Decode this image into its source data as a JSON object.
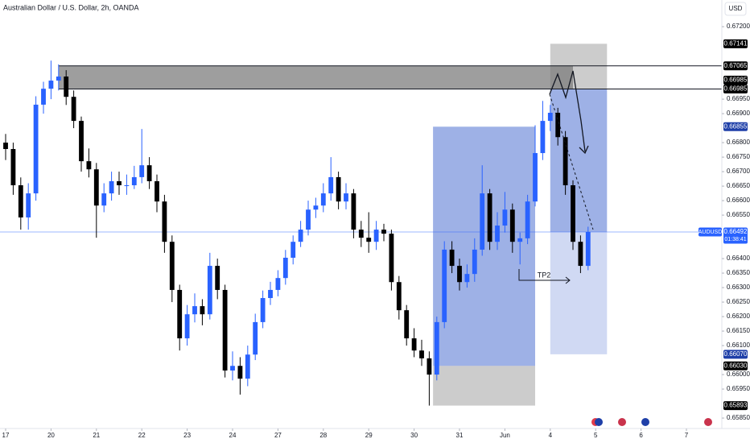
{
  "chart_data": {
    "type": "candlestick",
    "title": "Australian Dollar / U.S. Dollar, 2h, OANDA",
    "currency": "USD",
    "up_color": "#2962ff",
    "down_color": "#000000",
    "xlim": [
      -0.745,
      94.68
    ],
    "ylim": [
      0.65814,
      0.67292
    ],
    "xticks": [
      {
        "value": 0,
        "label": "17"
      },
      {
        "value": 6,
        "label": "20"
      },
      {
        "value": 12,
        "label": "21"
      },
      {
        "value": 18,
        "label": "22"
      },
      {
        "value": 24,
        "label": "23"
      },
      {
        "value": 30,
        "label": "24"
      },
      {
        "value": 36,
        "label": "27"
      },
      {
        "value": 42,
        "label": "28"
      },
      {
        "value": 48,
        "label": "29"
      },
      {
        "value": 54,
        "label": "30"
      },
      {
        "value": 60,
        "label": "31"
      },
      {
        "value": 66,
        "label": "Jun"
      },
      {
        "value": 72,
        "label": "4"
      },
      {
        "value": 78,
        "label": "5"
      },
      {
        "value": 84,
        "label": "6"
      },
      {
        "value": 90,
        "label": "7"
      }
    ],
    "yticks": [
      {
        "value": 0.672,
        "label": "0.67200"
      },
      {
        "value": 0.6695,
        "label": "0.66950"
      },
      {
        "value": 0.669,
        "label": "0.66900"
      },
      {
        "value": 0.668,
        "label": "0.66800"
      },
      {
        "value": 0.6675,
        "label": "0.66750"
      },
      {
        "value": 0.667,
        "label": "0.66700"
      },
      {
        "value": 0.6665,
        "label": "0.66650"
      },
      {
        "value": 0.666,
        "label": "0.66600"
      },
      {
        "value": 0.6655,
        "label": "0.66550"
      },
      {
        "value": 0.664,
        "label": "0.66400"
      },
      {
        "value": 0.6635,
        "label": "0.66350"
      },
      {
        "value": 0.663,
        "label": "0.66300"
      },
      {
        "value": 0.6625,
        "label": "0.66250"
      },
      {
        "value": 0.662,
        "label": "0.66200"
      },
      {
        "value": 0.6615,
        "label": "0.66150"
      },
      {
        "value": 0.661,
        "label": "0.66100"
      },
      {
        "value": 0.66,
        "label": "0.66000"
      },
      {
        "value": 0.6595,
        "label": "0.65950"
      },
      {
        "value": 0.6585,
        "label": "0.65850"
      }
    ],
    "ohlc": [
      [
        0.668,
        0.6683,
        0.6674,
        0.66778
      ],
      [
        0.66778,
        0.668,
        0.6662,
        0.66653
      ],
      [
        0.66653,
        0.6668,
        0.665,
        0.66542
      ],
      [
        0.66542,
        0.6666,
        0.665,
        0.66625
      ],
      [
        0.66625,
        0.6696,
        0.666,
        0.66931
      ],
      [
        0.66931,
        0.6701,
        0.669,
        0.66986
      ],
      [
        0.66986,
        0.67083,
        0.6695,
        0.67014
      ],
      [
        0.67014,
        0.6707,
        0.6698,
        0.67028
      ],
      [
        0.67028,
        0.6705,
        0.6693,
        0.66958
      ],
      [
        0.66958,
        0.6698,
        0.6685,
        0.66875
      ],
      [
        0.66875,
        0.6689,
        0.667,
        0.66736
      ],
      [
        0.66736,
        0.6678,
        0.6668,
        0.66708
      ],
      [
        0.66708,
        0.6673,
        0.66472,
        0.66583
      ],
      [
        0.66583,
        0.6666,
        0.6656,
        0.66625
      ],
      [
        0.66625,
        0.667,
        0.666,
        0.66667
      ],
      [
        0.66667,
        0.667,
        0.6662,
        0.66653
      ],
      [
        0.66653,
        0.6669,
        0.6662,
        0.66653
      ],
      [
        0.66653,
        0.6672,
        0.6664,
        0.66681
      ],
      [
        0.66681,
        0.66847,
        0.6666,
        0.66722
      ],
      [
        0.66722,
        0.6675,
        0.6664,
        0.66667
      ],
      [
        0.66667,
        0.6669,
        0.6656,
        0.66597
      ],
      [
        0.66597,
        0.6662,
        0.6642,
        0.66458
      ],
      [
        0.66458,
        0.6648,
        0.6625,
        0.66292
      ],
      [
        0.66292,
        0.6631,
        0.66083,
        0.66125
      ],
      [
        0.66125,
        0.6624,
        0.661,
        0.66208
      ],
      [
        0.66208,
        0.6628,
        0.6618,
        0.66236
      ],
      [
        0.66236,
        0.6626,
        0.6617,
        0.66208
      ],
      [
        0.66208,
        0.6642,
        0.6619,
        0.66375
      ],
      [
        0.66375,
        0.664,
        0.6626,
        0.66292
      ],
      [
        0.66292,
        0.6631,
        0.6599,
        0.66014
      ],
      [
        0.66014,
        0.6608,
        0.6598,
        0.6603
      ],
      [
        0.6603,
        0.6606,
        0.65931,
        0.65986
      ],
      [
        0.65986,
        0.661,
        0.6596,
        0.66069
      ],
      [
        0.66069,
        0.6621,
        0.6605,
        0.66181
      ],
      [
        0.66181,
        0.6629,
        0.6616,
        0.66264
      ],
      [
        0.66264,
        0.6632,
        0.6624,
        0.66292
      ],
      [
        0.66292,
        0.6636,
        0.6627,
        0.66333
      ],
      [
        0.66333,
        0.6643,
        0.6631,
        0.66403
      ],
      [
        0.66403,
        0.6648,
        0.6638,
        0.66458
      ],
      [
        0.66458,
        0.6653,
        0.6644,
        0.665
      ],
      [
        0.665,
        0.666,
        0.6648,
        0.66569
      ],
      [
        0.66569,
        0.6661,
        0.6654,
        0.66583
      ],
      [
        0.66583,
        0.6666,
        0.6656,
        0.66625
      ],
      [
        0.66625,
        0.6675,
        0.666,
        0.66681
      ],
      [
        0.66681,
        0.667,
        0.6657,
        0.66597
      ],
      [
        0.66597,
        0.6666,
        0.6657,
        0.66625
      ],
      [
        0.66625,
        0.6664,
        0.6647,
        0.665
      ],
      [
        0.665,
        0.6653,
        0.6644,
        0.66472
      ],
      [
        0.66472,
        0.6656,
        0.6642,
        0.66458
      ],
      [
        0.66458,
        0.6653,
        0.6643,
        0.665
      ],
      [
        0.665,
        0.6652,
        0.6646,
        0.66486
      ],
      [
        0.66486,
        0.665,
        0.6629,
        0.66319
      ],
      [
        0.66319,
        0.6634,
        0.6619,
        0.66222
      ],
      [
        0.66222,
        0.6624,
        0.661,
        0.66125
      ],
      [
        0.66125,
        0.6616,
        0.6606,
        0.66083
      ],
      [
        0.66083,
        0.6612,
        0.6603,
        0.66056
      ],
      [
        0.66056,
        0.6608,
        0.65893,
        0.66
      ],
      [
        0.66,
        0.662,
        0.6598,
        0.66181
      ],
      [
        0.66181,
        0.6646,
        0.6616,
        0.66431
      ],
      [
        0.66431,
        0.6646,
        0.6635,
        0.66375
      ],
      [
        0.66375,
        0.664,
        0.6629,
        0.66319
      ],
      [
        0.66319,
        0.6638,
        0.663,
        0.66347
      ],
      [
        0.66347,
        0.6647,
        0.6632,
        0.66431
      ],
      [
        0.66431,
        0.66722,
        0.6641,
        0.66625
      ],
      [
        0.66625,
        0.6664,
        0.6643,
        0.66458
      ],
      [
        0.66458,
        0.6656,
        0.6643,
        0.66514
      ],
      [
        0.66514,
        0.6663,
        0.6649,
        0.66569
      ],
      [
        0.66569,
        0.6659,
        0.6642,
        0.66458
      ],
      [
        0.66458,
        0.6649,
        0.6638,
        0.6647
      ],
      [
        0.6647,
        0.6662,
        0.6645,
        0.66597
      ],
      [
        0.66597,
        0.6686,
        0.6658,
        0.66764
      ],
      [
        0.66764,
        0.66944,
        0.6674,
        0.66875
      ],
      [
        0.66875,
        0.6693,
        0.6684,
        0.66903
      ],
      [
        0.66903,
        0.6692,
        0.6679,
        0.66819
      ],
      [
        0.66819,
        0.6684,
        0.6662,
        0.66653
      ],
      [
        0.66653,
        0.6667,
        0.6643,
        0.66458
      ],
      [
        0.66458,
        0.6648,
        0.6635,
        0.66375
      ],
      [
        0.66375,
        0.6651,
        0.6636,
        0.66492
      ]
    ],
    "zones": [
      {
        "x": [
          7,
          75
        ],
        "y": [
          0.66985,
          0.67065
        ],
        "color": "rgba(0,0,0,0.38)"
      },
      {
        "x": [
          56.5,
          70
        ],
        "y": [
          0.6603,
          0.66855
        ],
        "color": "rgba(41,82,200,0.45)"
      },
      {
        "x": [
          56.5,
          70
        ],
        "y": [
          0.65893,
          0.6603
        ],
        "color": "rgba(120,120,120,0.38)"
      },
      {
        "x": [
          72,
          79.5
        ],
        "y": [
          0.66985,
          0.67141
        ],
        "color": "rgba(120,120,120,0.38)"
      },
      {
        "x": [
          72,
          79.5
        ],
        "y": [
          0.66492,
          0.66985
        ],
        "color": "rgba(41,82,200,0.45)"
      },
      {
        "x": [
          72,
          79.5
        ],
        "y": [
          0.6607,
          0.66492
        ],
        "color": "rgba(41,82,200,0.22)"
      }
    ],
    "levels": [
      {
        "x": [
          7,
          94.68
        ],
        "value": 0.67065
      },
      {
        "x": [
          7,
          94.68
        ],
        "value": 0.66985
      }
    ],
    "price_labels": [
      {
        "value": 0.67141,
        "label": "0.67141",
        "color": "#000000"
      },
      {
        "value": 0.67065,
        "label": "0.67065",
        "color": "#000000"
      },
      {
        "value": 0.66985,
        "label": "0.66985",
        "color": "#000000"
      },
      {
        "value": 0.66985,
        "label": "0.66985",
        "color": "#000000"
      },
      {
        "value": 0.66855,
        "label": "0.66855",
        "color": "#1e3fa8"
      },
      {
        "value": 0.6607,
        "label": "0.66070",
        "color": "#1e3fa8"
      },
      {
        "value": 0.6603,
        "label": "0.66030",
        "color": "#000000"
      },
      {
        "value": 0.65893,
        "label": "0.65893",
        "color": "#000000"
      }
    ],
    "current_price": {
      "symbol": "AUDUSD",
      "value": 0.66492,
      "label": "0.66492",
      "countdown": "01:38:41",
      "color": "#2962ff"
    },
    "annotation": "TP2"
  }
}
